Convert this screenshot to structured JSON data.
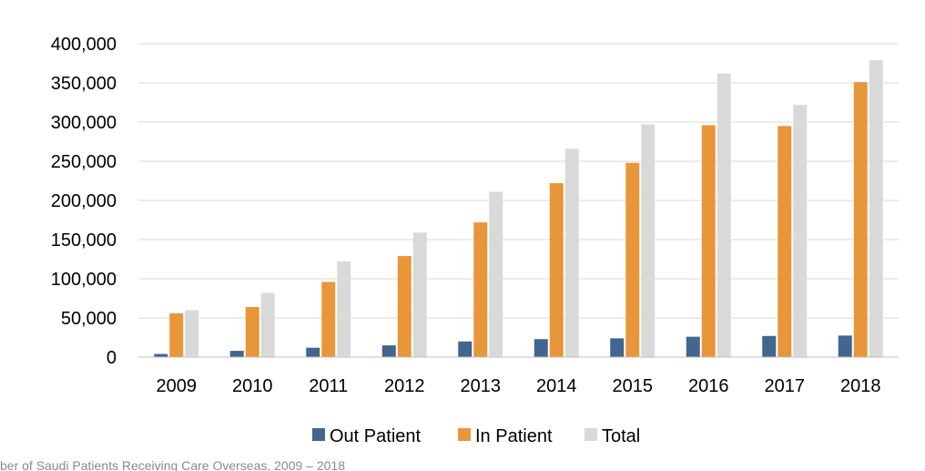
{
  "chart_data": {
    "type": "bar",
    "title": "",
    "xlabel": "",
    "ylabel": "",
    "categories": [
      "2009",
      "2010",
      "2011",
      "2012",
      "2013",
      "2014",
      "2015",
      "2016",
      "2017",
      "2018"
    ],
    "series": [
      {
        "name": "Out Patient",
        "color": "#41668f",
        "values": [
          4000,
          8000,
          12000,
          15000,
          20000,
          23000,
          24000,
          26000,
          27000,
          27500
        ]
      },
      {
        "name": "In Patient",
        "color": "#e8963a",
        "values": [
          56000,
          64000,
          96000,
          129000,
          172000,
          222000,
          248000,
          296000,
          295000,
          351000
        ]
      },
      {
        "name": "Total",
        "color": "#d9d9d9",
        "values": [
          60000,
          82000,
          122000,
          159000,
          211000,
          266000,
          297000,
          362000,
          322000,
          379000
        ]
      }
    ],
    "ylim": [
      0,
      400000
    ],
    "yticks": [
      0,
      50000,
      100000,
      150000,
      200000,
      250000,
      300000,
      350000,
      400000
    ],
    "ytick_labels": [
      "0",
      "50,000",
      "100,000",
      "150,000",
      "200,000",
      "250,000",
      "300,000",
      "350,000",
      "400,000"
    ],
    "grid": true,
    "legend_position": "bottom"
  },
  "caption": "ber of Saudi Patients Receiving Care Overseas, 2009 – 2018"
}
